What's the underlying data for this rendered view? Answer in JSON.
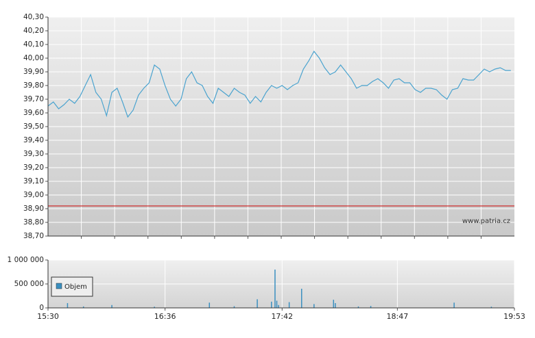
{
  "chart_data": [
    {
      "type": "line",
      "color": "#4aa3cf",
      "x": [
        "15:30",
        "15:33",
        "15:36",
        "15:39",
        "15:42",
        "15:45",
        "15:48",
        "15:51",
        "15:54",
        "15:57",
        "16:00",
        "16:03",
        "16:06",
        "16:09",
        "16:12",
        "16:15",
        "16:18",
        "16:21",
        "16:24",
        "16:27",
        "16:30",
        "16:33",
        "16:36",
        "16:39",
        "16:42",
        "16:45",
        "16:48",
        "16:51",
        "16:54",
        "16:57",
        "17:00",
        "17:03",
        "17:06",
        "17:09",
        "17:12",
        "17:15",
        "17:18",
        "17:21",
        "17:24",
        "17:27",
        "17:30",
        "17:33",
        "17:36",
        "17:39",
        "17:42",
        "17:45",
        "17:48",
        "17:51",
        "17:54",
        "17:57",
        "18:00",
        "18:03",
        "18:06",
        "18:09",
        "18:12",
        "18:15",
        "18:18",
        "18:21",
        "18:24",
        "18:27",
        "18:30",
        "18:33",
        "18:36",
        "18:39",
        "18:42",
        "18:45",
        "18:48",
        "18:51",
        "18:54",
        "18:57",
        "19:00",
        "19:03",
        "19:06",
        "19:09",
        "19:12",
        "19:15",
        "19:18",
        "19:21",
        "19:24",
        "19:27",
        "19:30",
        "19:33",
        "19:36",
        "19:39",
        "19:42",
        "19:45",
        "19:48",
        "19:51"
      ],
      "values": [
        39.65,
        39.68,
        39.63,
        39.66,
        39.7,
        39.67,
        39.72,
        39.8,
        39.88,
        39.75,
        39.7,
        39.58,
        39.75,
        39.78,
        39.68,
        39.57,
        39.62,
        39.73,
        39.78,
        39.82,
        39.95,
        39.92,
        39.8,
        39.7,
        39.65,
        39.7,
        39.85,
        39.9,
        39.82,
        39.8,
        39.72,
        39.67,
        39.78,
        39.75,
        39.72,
        39.78,
        39.75,
        39.73,
        39.67,
        39.72,
        39.68,
        39.75,
        39.8,
        39.78,
        39.8,
        39.77,
        39.8,
        39.82,
        39.92,
        39.98,
        40.05,
        40.0,
        39.93,
        39.88,
        39.9,
        39.95,
        39.9,
        39.85,
        39.78,
        39.8,
        39.8,
        39.83,
        39.85,
        39.82,
        39.78,
        39.84,
        39.85,
        39.82,
        39.82,
        39.77,
        39.75,
        39.78,
        39.78,
        39.77,
        39.73,
        39.7,
        39.77,
        39.78,
        39.85,
        39.84,
        39.84,
        39.88,
        39.92,
        39.9,
        39.92,
        39.93,
        39.91,
        39.91
      ],
      "xlim": [
        "15:30",
        "19:53"
      ],
      "ylim": [
        38.7,
        40.3
      ],
      "yticks": [
        {
          "value": 38.7,
          "label": "38,70"
        },
        {
          "value": 38.8,
          "label": "38,80"
        },
        {
          "value": 38.9,
          "label": "38,90"
        },
        {
          "value": 39.0,
          "label": "39,00"
        },
        {
          "value": 39.1,
          "label": "39,10"
        },
        {
          "value": 39.2,
          "label": "39,20"
        },
        {
          "value": 39.3,
          "label": "39,30"
        },
        {
          "value": 39.4,
          "label": "39,40"
        },
        {
          "value": 39.5,
          "label": "39,50"
        },
        {
          "value": 39.6,
          "label": "39,60"
        },
        {
          "value": 39.7,
          "label": "39,70"
        },
        {
          "value": 39.8,
          "label": "39,80"
        },
        {
          "value": 39.9,
          "label": "39,90"
        },
        {
          "value": 40.0,
          "label": "40,00"
        },
        {
          "value": 40.1,
          "label": "40,10"
        },
        {
          "value": 40.2,
          "label": "40,20"
        },
        {
          "value": 40.3,
          "label": "40,30"
        }
      ],
      "reference_line": 38.92,
      "reference_color": "#cc0000",
      "grid": true,
      "annotation": "www.patria.cz"
    },
    {
      "type": "bar",
      "x": [
        "15:41",
        "15:50",
        "16:06",
        "16:30",
        "17:01",
        "17:15",
        "17:28",
        "17:36",
        "17:38",
        "17:39",
        "17:40",
        "17:46",
        "17:53",
        "18:00",
        "18:11",
        "18:12",
        "18:25",
        "18:32",
        "19:19",
        "19:40"
      ],
      "series": [
        {
          "name": "Objem",
          "color": "#3a8fc0",
          "values": [
            100000,
            30000,
            60000,
            25000,
            110000,
            35000,
            180000,
            130000,
            800000,
            150000,
            60000,
            120000,
            400000,
            80000,
            170000,
            100000,
            30000,
            40000,
            110000,
            25000
          ]
        }
      ],
      "xlim": [
        "15:30",
        "19:53"
      ],
      "xticks": [
        "15:30",
        "16:36",
        "17:42",
        "18:47",
        "19:53"
      ],
      "ylim": [
        0,
        1000000
      ],
      "yticks": [
        0,
        {
          "value": 500000,
          "label": "500 000"
        },
        {
          "value": 1000000,
          "label": "1 000 000"
        }
      ],
      "grid": true,
      "legend": "left"
    }
  ]
}
